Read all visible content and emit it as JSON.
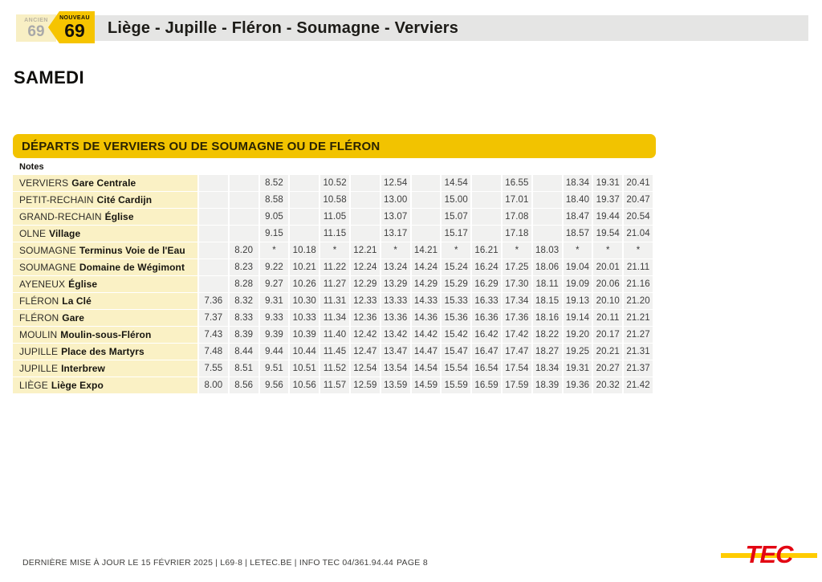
{
  "header": {
    "old_label": "ANCIEN",
    "old_number": "69",
    "new_label": "NOUVEAU",
    "new_number": "69",
    "route_title": "Liège - Jupille - Fléron - Soumagne - Verviers"
  },
  "day_title": "SAMEDI",
  "banner_title": "DÉPARTS DE VERVIERS OU DE SOUMAGNE OU DE FLÉRON",
  "notes_label": "Notes",
  "timetable": {
    "column_count": 15,
    "rows": [
      {
        "place": "VERVIERS",
        "stop": "Gare Centrale",
        "times": [
          "",
          "",
          "8.52",
          "",
          "10.52",
          "",
          "12.54",
          "",
          "14.54",
          "",
          "16.55",
          "",
          "18.34",
          "19.31",
          "20.41"
        ]
      },
      {
        "place": "PETIT-RECHAIN",
        "stop": "Cité Cardijn",
        "times": [
          "",
          "",
          "8.58",
          "",
          "10.58",
          "",
          "13.00",
          "",
          "15.00",
          "",
          "17.01",
          "",
          "18.40",
          "19.37",
          "20.47"
        ]
      },
      {
        "place": "GRAND-RECHAIN",
        "stop": "Église",
        "times": [
          "",
          "",
          "9.05",
          "",
          "11.05",
          "",
          "13.07",
          "",
          "15.07",
          "",
          "17.08",
          "",
          "18.47",
          "19.44",
          "20.54"
        ]
      },
      {
        "place": "OLNE",
        "stop": "Village",
        "times": [
          "",
          "",
          "9.15",
          "",
          "11.15",
          "",
          "13.17",
          "",
          "15.17",
          "",
          "17.18",
          "",
          "18.57",
          "19.54",
          "21.04"
        ]
      },
      {
        "place": "SOUMAGNE",
        "stop": "Terminus Voie de l'Eau",
        "times": [
          "",
          "8.20",
          "*",
          "10.18",
          "*",
          "12.21",
          "*",
          "14.21",
          "*",
          "16.21",
          "*",
          "18.03",
          "*",
          "*",
          "*"
        ]
      },
      {
        "place": "SOUMAGNE",
        "stop": "Domaine de Wégimont",
        "times": [
          "",
          "8.23",
          "9.22",
          "10.21",
          "11.22",
          "12.24",
          "13.24",
          "14.24",
          "15.24",
          "16.24",
          "17.25",
          "18.06",
          "19.04",
          "20.01",
          "21.11"
        ]
      },
      {
        "place": "AYENEUX",
        "stop": "Église",
        "times": [
          "",
          "8.28",
          "9.27",
          "10.26",
          "11.27",
          "12.29",
          "13.29",
          "14.29",
          "15.29",
          "16.29",
          "17.30",
          "18.11",
          "19.09",
          "20.06",
          "21.16"
        ]
      },
      {
        "place": "FLÉRON",
        "stop": "La Clé",
        "times": [
          "7.36",
          "8.32",
          "9.31",
          "10.30",
          "11.31",
          "12.33",
          "13.33",
          "14.33",
          "15.33",
          "16.33",
          "17.34",
          "18.15",
          "19.13",
          "20.10",
          "21.20"
        ]
      },
      {
        "place": "FLÉRON",
        "stop": "Gare",
        "times": [
          "7.37",
          "8.33",
          "9.33",
          "10.33",
          "11.34",
          "12.36",
          "13.36",
          "14.36",
          "15.36",
          "16.36",
          "17.36",
          "18.16",
          "19.14",
          "20.11",
          "21.21"
        ]
      },
      {
        "place": "MOULIN",
        "stop": "Moulin-sous-Fléron",
        "times": [
          "7.43",
          "8.39",
          "9.39",
          "10.39",
          "11.40",
          "12.42",
          "13.42",
          "14.42",
          "15.42",
          "16.42",
          "17.42",
          "18.22",
          "19.20",
          "20.17",
          "21.27"
        ]
      },
      {
        "place": "JUPILLE",
        "stop": "Place des Martyrs",
        "times": [
          "7.48",
          "8.44",
          "9.44",
          "10.44",
          "11.45",
          "12.47",
          "13.47",
          "14.47",
          "15.47",
          "16.47",
          "17.47",
          "18.27",
          "19.25",
          "20.21",
          "21.31"
        ]
      },
      {
        "place": "JUPILLE",
        "stop": "Interbrew",
        "times": [
          "7.55",
          "8.51",
          "9.51",
          "10.51",
          "11.52",
          "12.54",
          "13.54",
          "14.54",
          "15.54",
          "16.54",
          "17.54",
          "18.34",
          "19.31",
          "20.27",
          "21.37"
        ]
      },
      {
        "place": "LIÈGE",
        "stop": "Liège Expo",
        "times": [
          "8.00",
          "8.56",
          "9.56",
          "10.56",
          "11.57",
          "12.59",
          "13.59",
          "14.59",
          "15.59",
          "16.59",
          "17.59",
          "18.39",
          "19.36",
          "20.32",
          "21.42"
        ]
      }
    ]
  },
  "footer": {
    "left_text": "DERNIÈRE MISE À JOUR LE 15 FÉVRIER 2025  |  L69·8  |  LETEC.BE  |  INFO TEC 04/361.94.44",
    "page_label": "PAGE 8",
    "logo_text": "TEC"
  },
  "colors": {
    "tec_gold": "#f2c300",
    "badge_gold": "#f6c400",
    "pale_yellow": "#f8efc4",
    "row_name_yellow": "#faf1c5",
    "row_time_gray": "#f1f1f0",
    "header_bar_gray": "#e5e5e4",
    "logo_red": "#e30613",
    "logo_yellow": "#ffcc00"
  }
}
